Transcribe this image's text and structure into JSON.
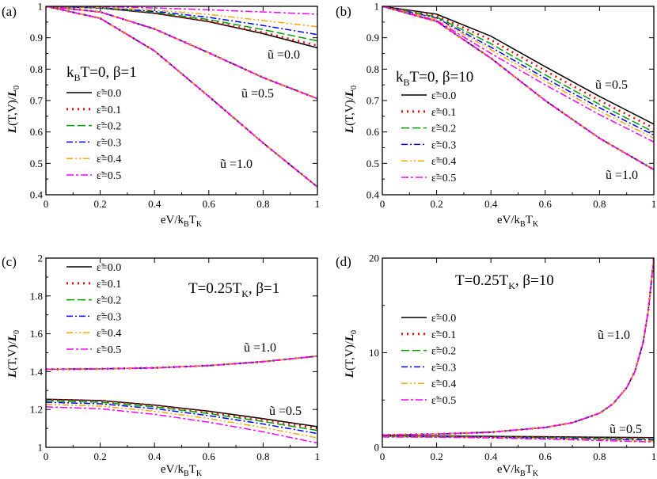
{
  "legend_entries": [
    "ε̃=0.0",
    "ε̃=0.1",
    "ε̃=0.2",
    "ε̃=0.3",
    "ε̃=0.4",
    "ε̃=0.5"
  ],
  "series_styles": [
    {
      "color": "#000000",
      "dash": ""
    },
    {
      "color": "#ff0000",
      "dash": "2 5"
    },
    {
      "color": "#00a000",
      "dash": "10 4"
    },
    {
      "color": "#0000ff",
      "dash": "8 3 2 3"
    },
    {
      "color": "#ffa500",
      "dash": "8 3 2 3 2 3"
    },
    {
      "color": "#ff00ff",
      "dash": "9 3 3 3"
    }
  ],
  "chart_data": [
    {
      "panel": "(a)",
      "type": "line",
      "xlabel": "eV/k_BT_K",
      "ylabel": "L(T,V)/L_0",
      "xlim": [
        0,
        1
      ],
      "ylim": [
        0.4,
        1.0
      ],
      "xticks": [
        "0",
        "0.2",
        "0.4",
        "0.6",
        "0.8",
        "1"
      ],
      "yticks": [
        "0.4",
        "0.5",
        "0.6",
        "0.7",
        "0.8",
        "0.9",
        "1"
      ],
      "title_text": "k_BT=0, β=1",
      "annotations": [
        "ũ =0.0",
        "ũ =0.5",
        "ũ =1.0"
      ],
      "groups": [
        {
          "label": "ũ =0.0",
          "x": [
            0,
            0.2,
            0.4,
            0.6,
            0.8,
            1.0
          ],
          "series": [
            {
              "name": "ε̃=0.0",
              "values": [
                1.0,
                0.995,
                0.978,
                0.951,
                0.913,
                0.868
              ]
            },
            {
              "name": "ε̃=0.1",
              "values": [
                1.0,
                0.995,
                0.979,
                0.953,
                0.917,
                0.875
              ]
            },
            {
              "name": "ε̃=0.2",
              "values": [
                1.0,
                0.995,
                0.981,
                0.958,
                0.926,
                0.89
              ]
            },
            {
              "name": "ε̃=0.3",
              "values": [
                1.0,
                0.996,
                0.984,
                0.965,
                0.939,
                0.91
              ]
            },
            {
              "name": "ε̃=0.4",
              "values": [
                1.0,
                0.997,
                0.988,
                0.974,
                0.955,
                0.935
              ]
            },
            {
              "name": "ε̃=0.5",
              "values": [
                1.0,
                0.999,
                0.995,
                0.989,
                0.982,
                0.975
              ]
            }
          ]
        },
        {
          "label": "ũ =0.5",
          "x": [
            0,
            0.2,
            0.4,
            0.6,
            0.8,
            1.0
          ],
          "series": [
            {
              "name": "all ε̃",
              "values": [
                1.0,
                0.982,
                0.928,
                0.852,
                0.773,
                0.706
              ]
            }
          ]
        },
        {
          "label": "ũ =1.0",
          "x": [
            0,
            0.2,
            0.4,
            0.6,
            0.8,
            1.0
          ],
          "series": [
            {
              "name": "all ε̃",
              "values": [
                1.0,
                0.962,
                0.858,
                0.713,
                0.565,
                0.425
              ]
            }
          ]
        }
      ]
    },
    {
      "panel": "(b)",
      "type": "line",
      "xlabel": "eV/k_BT_K",
      "ylabel": "L(T,V)/L_0",
      "xlim": [
        0,
        1
      ],
      "ylim": [
        0.4,
        1.0
      ],
      "xticks": [
        "0",
        "0.2",
        "0.4",
        "0.6",
        "0.8",
        "1"
      ],
      "yticks": [
        "0.4",
        "0.5",
        "0.6",
        "0.7",
        "0.8",
        "0.9",
        "1"
      ],
      "title_text": "k_BT=0, β=10",
      "annotations": [
        "ũ =0.5",
        "ũ =1.0"
      ],
      "groups": [
        {
          "label": "ũ =0.5",
          "x": [
            0,
            0.2,
            0.4,
            0.6,
            0.8,
            1.0
          ],
          "series": [
            {
              "name": "ε̃=0.0",
              "values": [
                1.0,
                0.975,
                0.905,
                0.808,
                0.713,
                0.625
              ]
            },
            {
              "name": "ε̃=0.1",
              "values": [
                1.0,
                0.97,
                0.893,
                0.795,
                0.7,
                0.612
              ]
            },
            {
              "name": "ε̃=0.2",
              "values": [
                1.0,
                0.966,
                0.881,
                0.782,
                0.688,
                0.6
              ]
            },
            {
              "name": "ε̃=0.3",
              "values": [
                1.0,
                0.963,
                0.87,
                0.771,
                0.677,
                0.59
              ]
            },
            {
              "name": "ε̃=0.4",
              "values": [
                1.0,
                0.96,
                0.862,
                0.762,
                0.667,
                0.58
              ]
            },
            {
              "name": "ε̃=0.5",
              "values": [
                1.0,
                0.955,
                0.85,
                0.75,
                0.655,
                0.568
              ]
            }
          ]
        },
        {
          "label": "ũ =1.0",
          "x": [
            0,
            0.2,
            0.4,
            0.6,
            0.8,
            1.0
          ],
          "series": [
            {
              "name": "all ε̃",
              "values": [
                1.0,
                0.952,
                0.835,
                0.7,
                0.58,
                0.48
              ]
            }
          ]
        }
      ]
    },
    {
      "panel": "(c)",
      "type": "line",
      "xlabel": "eV/k_BT_K",
      "ylabel": "L(T,V)/L_0",
      "xlim": [
        0,
        1
      ],
      "ylim": [
        0.9,
        2.0
      ],
      "xticks": [
        "0",
        "0.2",
        "0.4",
        "0.6",
        "0.8",
        "1"
      ],
      "yticks": [
        "1",
        "1.2",
        "1.4",
        "1.6",
        "1.8",
        "2"
      ],
      "title_text": "T=0.25T_K, β=1",
      "annotations": [
        "ũ =1.0",
        "ũ =0.5"
      ],
      "groups": [
        {
          "label": "ũ =1.0",
          "x": [
            0,
            0.2,
            0.4,
            0.6,
            0.8,
            1.0
          ],
          "series": [
            {
              "name": "all ε̃",
              "values": [
                1.354,
                1.356,
                1.362,
                1.375,
                1.398,
                1.43
              ]
            }
          ]
        },
        {
          "label": "ũ =0.5",
          "x": [
            0,
            0.2,
            0.4,
            0.6,
            0.8,
            1.0
          ],
          "series": [
            {
              "name": "ε̃=0.0",
              "values": [
                1.18,
                1.172,
                1.146,
                1.11,
                1.067,
                1.02
              ]
            },
            {
              "name": "ε̃=0.1",
              "values": [
                1.176,
                1.168,
                1.142,
                1.104,
                1.06,
                1.01
              ]
            },
            {
              "name": "ε̃=0.2",
              "values": [
                1.17,
                1.162,
                1.135,
                1.096,
                1.05,
                0.998
              ]
            },
            {
              "name": "ε̃=0.3",
              "values": [
                1.162,
                1.153,
                1.125,
                1.084,
                1.036,
                0.98
              ]
            },
            {
              "name": "ε̃=0.4",
              "values": [
                1.15,
                1.14,
                1.11,
                1.067,
                1.015,
                0.955
              ]
            },
            {
              "name": "ε̃=0.5",
              "values": [
                1.135,
                1.124,
                1.092,
                1.046,
                0.99,
                0.925
              ]
            }
          ]
        }
      ]
    },
    {
      "panel": "(d)",
      "type": "line",
      "xlabel": "eV/k_BT_K",
      "ylabel": "L(T,V)/L_0",
      "xlim": [
        0,
        1
      ],
      "ylim": [
        0,
        20
      ],
      "xticks": [
        "0",
        "0.2",
        "0.4",
        "0.6",
        "0.8",
        "1"
      ],
      "yticks": [
        "0",
        "10",
        "20"
      ],
      "title_text": "T=0.25T_K, β=10",
      "annotations": [
        "ũ =1.0",
        "ũ =0.5"
      ],
      "groups": [
        {
          "label": "ũ =1.0",
          "x": [
            0,
            0.2,
            0.4,
            0.6,
            0.7,
            0.8,
            0.85,
            0.9,
            0.93,
            0.96,
            0.98,
            1.0
          ],
          "series": [
            {
              "name": "all ε̃",
              "values": [
                1.3,
                1.4,
                1.6,
                2.1,
                2.6,
                3.6,
                4.6,
                6.3,
                8.0,
                11.0,
                14.5,
                20.0
              ]
            }
          ]
        },
        {
          "label": "ũ =0.5",
          "x": [
            0,
            0.2,
            0.4,
            0.6,
            0.8,
            1.0
          ],
          "series": [
            {
              "name": "ε̃=0.0",
              "values": [
                1.2,
                1.19,
                1.16,
                1.12,
                1.07,
                1.02
              ]
            },
            {
              "name": "ε̃=0.1",
              "values": [
                1.18,
                1.17,
                1.13,
                1.08,
                1.0,
                0.92
              ]
            },
            {
              "name": "ε̃=0.2",
              "values": [
                1.16,
                1.15,
                1.1,
                1.03,
                0.94,
                0.84
              ]
            },
            {
              "name": "ε̃=0.3",
              "values": [
                1.14,
                1.12,
                1.07,
                0.98,
                0.87,
                0.75
              ]
            },
            {
              "name": "ε̃=0.4",
              "values": [
                1.12,
                1.1,
                1.03,
                0.93,
                0.8,
                0.66
              ]
            },
            {
              "name": "ε̃=0.5",
              "values": [
                1.1,
                1.07,
                0.99,
                0.87,
                0.72,
                0.56
              ]
            }
          ]
        }
      ]
    }
  ]
}
